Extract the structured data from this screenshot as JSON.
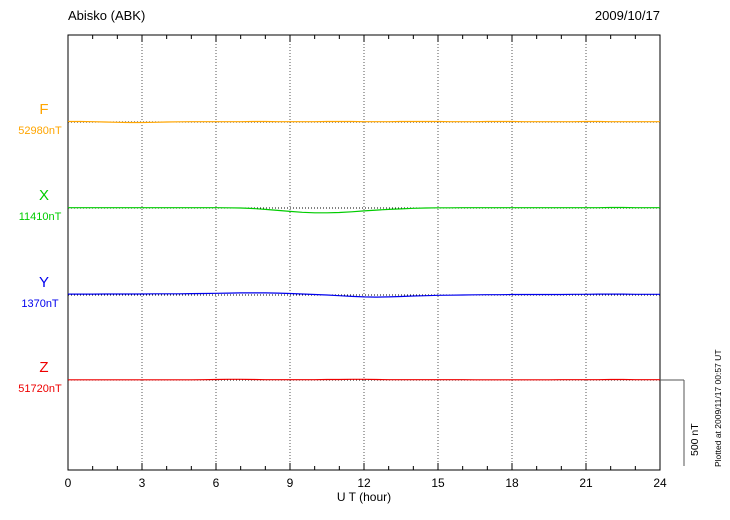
{
  "header": {
    "station": "Abisko (ABK)",
    "date": "2009/10/17"
  },
  "footer": {
    "plotted_at": "Plotted at 2009/11/17 00:57 UT"
  },
  "chart_data": {
    "type": "line",
    "title": "Abisko (ABK) magnetogram 2009/10/17",
    "xlabel": "U T (hour)",
    "ylabel": "",
    "xlim": [
      0,
      24
    ],
    "x_ticks": [
      0,
      3,
      6,
      9,
      12,
      15,
      18,
      21,
      24
    ],
    "x_start": 0,
    "x_step": 0.5,
    "grid": "vertical-dotted",
    "legend_position": "left-margin",
    "scale_bar": {
      "label": "500 nT",
      "nT": 500
    },
    "series": [
      {
        "name": "F",
        "baseline": "52980nT",
        "color": "#FFA500",
        "values": [
          3,
          3,
          2,
          0,
          -2,
          -3,
          -3,
          -2,
          0,
          1,
          2,
          2,
          2,
          2,
          2,
          3,
          3,
          2,
          2,
          2,
          2,
          3,
          3,
          3,
          2,
          2,
          2,
          3,
          3,
          3,
          3,
          2,
          2,
          2,
          3,
          3,
          3,
          2,
          2,
          2,
          2,
          2,
          3,
          3,
          2,
          2,
          2,
          2,
          2
        ]
      },
      {
        "name": "X",
        "baseline": "11410nT",
        "color": "#00CC00",
        "values": [
          2,
          2,
          2,
          2,
          2,
          2,
          2,
          2,
          2,
          2,
          2,
          2,
          2,
          1,
          0,
          -3,
          -8,
          -14,
          -20,
          -25,
          -28,
          -28,
          -26,
          -22,
          -17,
          -12,
          -8,
          -5,
          -2,
          0,
          1,
          1,
          2,
          2,
          2,
          2,
          2,
          2,
          2,
          2,
          2,
          2,
          2,
          2,
          3,
          3,
          2,
          2,
          2
        ]
      },
      {
        "name": "Y",
        "baseline": "1370nT",
        "color": "#0000EE",
        "values": [
          5,
          5,
          5,
          6,
          6,
          6,
          6,
          7,
          7,
          7,
          8,
          9,
          10,
          11,
          12,
          12,
          12,
          11,
          9,
          6,
          3,
          0,
          -4,
          -8,
          -11,
          -12,
          -11,
          -9,
          -6,
          -4,
          -2,
          -1,
          0,
          1,
          2,
          2,
          3,
          3,
          3,
          3,
          3,
          4,
          4,
          5,
          5,
          5,
          4,
          4,
          4
        ]
      },
      {
        "name": "Z",
        "baseline": "51720nT",
        "color": "#EE0000",
        "values": [
          1,
          1,
          1,
          1,
          1,
          1,
          1,
          1,
          1,
          1,
          1,
          2,
          3,
          4,
          4,
          3,
          2,
          2,
          2,
          2,
          2,
          3,
          3,
          4,
          4,
          3,
          2,
          2,
          2,
          2,
          2,
          2,
          2,
          1,
          1,
          1,
          1,
          1,
          1,
          1,
          2,
          2,
          2,
          2,
          3,
          3,
          2,
          2,
          2
        ]
      }
    ]
  }
}
